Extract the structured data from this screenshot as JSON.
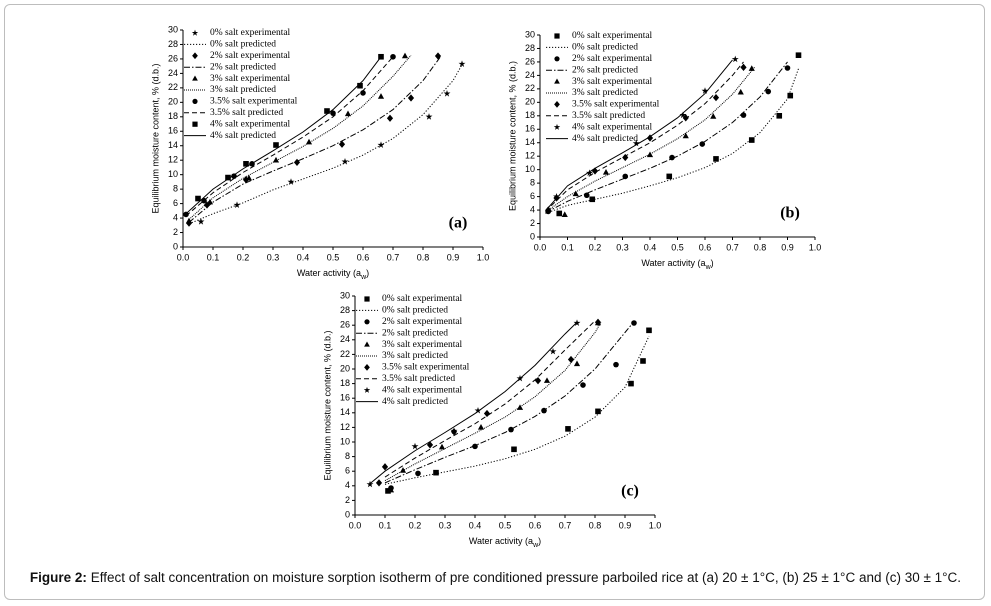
{
  "chart_data": [
    {
      "type": "scatter",
      "panel_label": "(a)",
      "y_label": "Equilibrium moisture content, % (d.b.)",
      "x_label": "Water activity (a",
      "x_label_sub": "w",
      "x_label_end": ")",
      "color": "#000000",
      "xlim": [
        0,
        1
      ],
      "ylim": [
        0,
        30
      ],
      "xticks": [
        {
          "value": 0,
          "label": "0.0"
        },
        0.1,
        0.2,
        0.3,
        0.4,
        0.5,
        0.6,
        0.7,
        0.8,
        0.9,
        {
          "value": 1,
          "label": "1.0"
        }
      ],
      "yticks": [
        0,
        2,
        4,
        6,
        8,
        10,
        12,
        14,
        16,
        18,
        20,
        22,
        24,
        26,
        28,
        30
      ],
      "series": [
        {
          "name": "0% salt experimental",
          "marker": "star",
          "x": [
            0.06,
            0.18,
            0.36,
            0.54,
            0.66,
            0.82,
            0.88,
            0.93
          ],
          "values": [
            3.5,
            5.8,
            9,
            11.8,
            14.1,
            18,
            21.2,
            25.3
          ]
        },
        {
          "name": "0% salt predicted",
          "line": "dotted",
          "x": [
            0.02,
            0.1,
            0.2,
            0.3,
            0.4,
            0.5,
            0.6,
            0.7,
            0.8,
            0.9,
            0.93
          ],
          "values": [
            3.2,
            4.6,
            6.1,
            7.9,
            9.4,
            10.9,
            12.7,
            15,
            18.3,
            23,
            25.2
          ]
        },
        {
          "name": "2% salt experimental",
          "marker": "diamond",
          "x": [
            0.02,
            0.08,
            0.21,
            0.38,
            0.53,
            0.69,
            0.76,
            0.85
          ],
          "values": [
            3.3,
            5.8,
            9.3,
            11.7,
            14.2,
            17.8,
            20.6,
            26.4
          ]
        },
        {
          "name": "2% salt predicted",
          "line": "dash-dot",
          "x": [
            0.02,
            0.1,
            0.2,
            0.3,
            0.4,
            0.5,
            0.6,
            0.7,
            0.8,
            0.86
          ],
          "values": [
            3.4,
            6.2,
            8.7,
            10.5,
            12.2,
            14,
            16.2,
            19,
            23,
            26.4
          ]
        },
        {
          "name": "3% salt experimental",
          "marker": "triangle",
          "x": [
            0.02,
            0.09,
            0.22,
            0.31,
            0.42,
            0.55,
            0.66,
            0.74
          ],
          "values": [
            3.6,
            6.2,
            9.5,
            12,
            14.5,
            18.4,
            20.8,
            26.4
          ]
        },
        {
          "name": "3% salt predicted",
          "line": "short-dot",
          "x": [
            0.02,
            0.1,
            0.2,
            0.3,
            0.4,
            0.5,
            0.6,
            0.7,
            0.76
          ],
          "values": [
            3.8,
            6.8,
            9.5,
            11.7,
            13.9,
            16.4,
            19.5,
            23.6,
            26.5
          ]
        },
        {
          "name": "3.5% salt experimental",
          "marker": "circle",
          "x": [
            0.01,
            0.07,
            0.17,
            0.23,
            0.5,
            0.6,
            0.7
          ],
          "values": [
            4.5,
            6.4,
            9.8,
            11.5,
            18.5,
            21.3,
            26.3
          ]
        },
        {
          "name": "3.5% salt predicted",
          "line": "dashed",
          "x": [
            0.01,
            0.1,
            0.2,
            0.3,
            0.4,
            0.5,
            0.6,
            0.7
          ],
          "values": [
            4.3,
            7.5,
            10.3,
            12.7,
            15.2,
            18,
            21.6,
            26.3
          ]
        },
        {
          "name": "4% salt experimental",
          "marker": "square",
          "x": [
            0.05,
            0.15,
            0.21,
            0.31,
            0.48,
            0.59,
            0.66
          ],
          "values": [
            6.7,
            9.6,
            11.5,
            14.1,
            18.8,
            22.3,
            26.3
          ]
        },
        {
          "name": "4% salt predicted",
          "line": "solid",
          "x": [
            0.01,
            0.1,
            0.2,
            0.3,
            0.4,
            0.5,
            0.6,
            0.66
          ],
          "values": [
            4.6,
            8,
            10.8,
            13.3,
            15.9,
            19,
            23,
            26.3
          ]
        }
      ]
    },
    {
      "type": "scatter",
      "panel_label": "(b)",
      "y_label": "Equilibrium moisture content, % (d.b.)",
      "x_label": "Water activity (a",
      "x_label_sub": "w",
      "x_label_end": ")",
      "color": "#000000",
      "xlim": [
        0,
        1
      ],
      "ylim": [
        0,
        30
      ],
      "xticks": [
        {
          "value": 0,
          "label": "0.0"
        },
        0.1,
        0.2,
        0.3,
        0.4,
        0.5,
        0.6,
        0.7,
        0.8,
        0.9,
        {
          "value": 1,
          "label": "1.0"
        }
      ],
      "yticks": [
        0,
        2,
        4,
        6,
        8,
        10,
        12,
        14,
        16,
        18,
        20,
        22,
        24,
        26,
        28,
        30
      ],
      "series": [
        {
          "name": "0% salt experimental",
          "marker": "square",
          "x": [
            0.07,
            0.19,
            0.47,
            0.64,
            0.77,
            0.87,
            0.91,
            0.94
          ],
          "values": [
            3.5,
            5.6,
            9,
            11.6,
            14.4,
            18,
            21,
            27
          ]
        },
        {
          "name": "0% salt predicted",
          "line": "dotted",
          "x": [
            0.02,
            0.1,
            0.2,
            0.3,
            0.4,
            0.5,
            0.6,
            0.7,
            0.8,
            0.9,
            0.94
          ],
          "values": [
            3.5,
            4.7,
            5.6,
            6.5,
            7.6,
            8.8,
            10.3,
            12.4,
            15.5,
            20.5,
            25
          ]
        },
        {
          "name": "2% salt experimental",
          "marker": "circle",
          "x": [
            0.03,
            0.17,
            0.31,
            0.48,
            0.59,
            0.74,
            0.83,
            0.9
          ],
          "values": [
            3.8,
            6.2,
            9,
            11.8,
            13.8,
            18.1,
            21.6,
            25.1
          ]
        },
        {
          "name": "2% salt predicted",
          "line": "dash-dot",
          "x": [
            0.02,
            0.1,
            0.2,
            0.3,
            0.4,
            0.5,
            0.6,
            0.7,
            0.8,
            0.9
          ],
          "values": [
            3.6,
            5.3,
            7,
            8.6,
            10.2,
            12,
            14.2,
            17,
            20.8,
            26
          ]
        },
        {
          "name": "3% salt experimental",
          "marker": "triangle",
          "x": [
            0.09,
            0.13,
            0.24,
            0.4,
            0.53,
            0.63,
            0.73,
            0.77
          ],
          "values": [
            3.3,
            6.4,
            9.6,
            12.2,
            15,
            17.9,
            21.5,
            25
          ]
        },
        {
          "name": "3% salt predicted",
          "line": "short-dot",
          "x": [
            0.02,
            0.1,
            0.2,
            0.3,
            0.4,
            0.5,
            0.6,
            0.7,
            0.78
          ],
          "values": [
            3.7,
            6,
            8.3,
            10.3,
            12.3,
            14.6,
            17.4,
            21.2,
            25.2
          ]
        },
        {
          "name": "3.5% salt experimental",
          "marker": "diamond",
          "x": [
            0.03,
            0.06,
            0.2,
            0.31,
            0.4,
            0.53,
            0.64,
            0.74
          ],
          "values": [
            4,
            5.8,
            9.8,
            11.8,
            14.7,
            17.7,
            20.7,
            25.2
          ]
        },
        {
          "name": "3.5% salt predicted",
          "line": "dashed",
          "x": [
            0.02,
            0.1,
            0.2,
            0.3,
            0.4,
            0.5,
            0.6,
            0.7,
            0.74
          ],
          "values": [
            3.8,
            7,
            9.6,
            11.8,
            14,
            16.6,
            19.8,
            24,
            26
          ]
        },
        {
          "name": "4% salt experimental",
          "marker": "star",
          "x": [
            0.06,
            0.18,
            0.35,
            0.52,
            0.6,
            0.71
          ],
          "values": [
            6,
            9.5,
            13.9,
            18.1,
            21.7,
            26.4
          ]
        },
        {
          "name": "4% salt predicted",
          "line": "solid",
          "x": [
            0.02,
            0.1,
            0.2,
            0.3,
            0.4,
            0.5,
            0.6,
            0.7
          ],
          "values": [
            3.9,
            7.6,
            10.2,
            12.5,
            14.9,
            17.7,
            21.3,
            26.3
          ]
        }
      ]
    },
    {
      "type": "scatter",
      "panel_label": "(c)",
      "y_label": "Equilibrium moisture content, % (d.b.)",
      "x_label": "Water activity (a",
      "x_label_sub": "w",
      "x_label_end": ")",
      "color": "#000000",
      "xlim": [
        0,
        1
      ],
      "ylim": [
        0,
        30
      ],
      "xticks": [
        {
          "value": 0,
          "label": "0.0"
        },
        0.1,
        0.2,
        0.3,
        0.4,
        0.5,
        0.6,
        0.7,
        0.8,
        0.9,
        {
          "value": 1,
          "label": "1.0"
        }
      ],
      "yticks": [
        0,
        2,
        4,
        6,
        8,
        10,
        12,
        14,
        16,
        18,
        20,
        22,
        24,
        26,
        28,
        30
      ],
      "series": [
        {
          "name": "0% salt experimental",
          "marker": "square",
          "x": [
            0.11,
            0.27,
            0.53,
            0.71,
            0.81,
            0.92,
            0.96,
            0.98
          ],
          "values": [
            3.3,
            5.8,
            9,
            11.8,
            14.2,
            18,
            21.1,
            25.3
          ]
        },
        {
          "name": "0% salt predicted",
          "line": "dotted",
          "x": [
            0.1,
            0.2,
            0.3,
            0.4,
            0.5,
            0.6,
            0.7,
            0.8,
            0.9,
            0.98
          ],
          "values": [
            4.2,
            5.1,
            5.9,
            6.7,
            7.7,
            9,
            10.8,
            13.4,
            17.5,
            24.5
          ]
        },
        {
          "name": "2% salt experimental",
          "marker": "circle",
          "x": [
            0.12,
            0.21,
            0.4,
            0.52,
            0.63,
            0.76,
            0.87,
            0.93
          ],
          "values": [
            3.7,
            5.7,
            9.4,
            11.7,
            14.3,
            17.8,
            20.6,
            26.3
          ]
        },
        {
          "name": "2% salt predicted",
          "line": "dash-dot",
          "x": [
            0.1,
            0.2,
            0.3,
            0.4,
            0.5,
            0.6,
            0.7,
            0.8,
            0.9,
            0.93
          ],
          "values": [
            4.4,
            6.2,
            7.9,
            9.5,
            11.3,
            13.5,
            16.3,
            20,
            25,
            26.5
          ]
        },
        {
          "name": "3% salt experimental",
          "marker": "triangle",
          "x": [
            0.12,
            0.16,
            0.29,
            0.42,
            0.55,
            0.64,
            0.74,
            0.81
          ],
          "values": [
            3.4,
            6.1,
            9.3,
            12,
            14.7,
            18.4,
            20.7,
            26.3
          ]
        },
        {
          "name": "3% salt predicted",
          "line": "short-dot",
          "x": [
            0.1,
            0.2,
            0.3,
            0.4,
            0.5,
            0.6,
            0.7,
            0.8,
            0.82
          ],
          "values": [
            4.7,
            7,
            9.1,
            11.2,
            13.4,
            16.2,
            19.8,
            25,
            26.4
          ]
        },
        {
          "name": "3.5% salt experimental",
          "marker": "diamond",
          "x": [
            0.08,
            0.1,
            0.25,
            0.33,
            0.44,
            0.61,
            0.72,
            0.81
          ],
          "values": [
            4.4,
            6.6,
            9.6,
            11.4,
            13.9,
            18.4,
            21.3,
            26.4
          ]
        },
        {
          "name": "3.5% salt predicted",
          "line": "dashed",
          "x": [
            0.1,
            0.2,
            0.3,
            0.4,
            0.5,
            0.6,
            0.7,
            0.8
          ],
          "values": [
            5.2,
            7.8,
            10.2,
            12.5,
            15.2,
            18.5,
            22.6,
            26.6
          ]
        },
        {
          "name": "4% salt experimental",
          "marker": "star",
          "x": [
            0.05,
            0.2,
            0.33,
            0.41,
            0.55,
            0.66,
            0.74
          ],
          "values": [
            4.2,
            9.4,
            11.5,
            14.3,
            18.7,
            22.4,
            26.3
          ]
        },
        {
          "name": "4% salt predicted",
          "line": "solid",
          "x": [
            0.05,
            0.1,
            0.2,
            0.3,
            0.4,
            0.5,
            0.6,
            0.7,
            0.74
          ],
          "values": [
            4.3,
            6,
            8.8,
            11.3,
            13.9,
            16.9,
            20.5,
            24.8,
            26.4
          ]
        }
      ]
    }
  ],
  "caption": {
    "label": "Figure 2:",
    "text": "Effect of salt concentration on moisture sorption isotherm of pre conditioned pressure parboiled rice at (a) 20 ± 1°C, (b) 25 ± 1°C and (c) 30 ± 1°C."
  }
}
